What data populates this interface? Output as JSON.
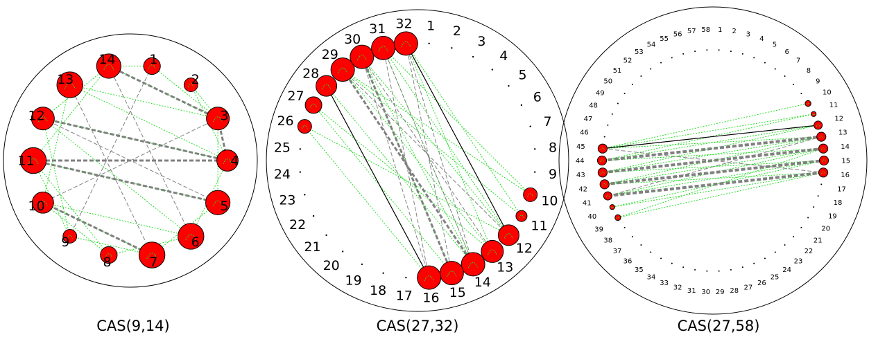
{
  "colors": {
    "node_fill": "#ff0000",
    "node_stroke": "#000000",
    "edge_green": "#22dd22",
    "edge_gray": "#808080",
    "edge_black": "#000000",
    "circle_stroke": "#000000"
  },
  "diagrams": [
    {
      "caption": "CAS(9,14)",
      "n": 14,
      "labels": [
        "1",
        "2",
        "3",
        "4",
        "5",
        "6",
        "7",
        "8",
        "9",
        "10",
        "11",
        "12",
        "13",
        "14"
      ],
      "active": [
        1,
        2,
        3,
        4,
        5,
        6,
        7,
        8,
        9,
        10,
        11,
        12,
        13,
        14
      ],
      "weights": {
        "1": 0.55,
        "2": 0.45,
        "3": 0.75,
        "4": 0.7,
        "5": 0.8,
        "6": 0.85,
        "7": 0.85,
        "8": 0.55,
        "9": 0.45,
        "10": 0.7,
        "11": 0.85,
        "12": 0.75,
        "13": 0.85,
        "14": 0.8
      },
      "edges_green": [
        [
          1,
          3
        ],
        [
          1,
          14
        ],
        [
          2,
          3
        ],
        [
          2,
          4
        ],
        [
          3,
          5
        ],
        [
          3,
          14
        ],
        [
          4,
          6
        ],
        [
          4,
          13
        ],
        [
          5,
          7
        ],
        [
          5,
          11
        ],
        [
          6,
          8
        ],
        [
          6,
          12
        ],
        [
          7,
          9
        ],
        [
          7,
          10
        ],
        [
          8,
          10
        ],
        [
          8,
          11
        ],
        [
          9,
          11
        ],
        [
          9,
          12
        ],
        [
          10,
          13
        ],
        [
          11,
          14
        ],
        [
          12,
          14
        ],
        [
          13,
          3
        ],
        [
          12,
          4
        ],
        [
          6,
          10
        ]
      ],
      "edges_gray_thin": [
        [
          3,
          10
        ],
        [
          13,
          7
        ],
        [
          14,
          6
        ],
        [
          12,
          5
        ],
        [
          1,
          9
        ]
      ],
      "edges_gray_thick": [
        [
          14,
          3
        ],
        [
          3,
          4
        ],
        [
          12,
          4
        ],
        [
          11,
          4
        ],
        [
          11,
          5
        ],
        [
          10,
          7
        ]
      ],
      "edges_black": []
    },
    {
      "caption": "CAS(27,32)",
      "n": 32,
      "labels": [
        "1",
        "2",
        "3",
        "4",
        "5",
        "6",
        "7",
        "8",
        "9",
        "10",
        "11",
        "12",
        "13",
        "14",
        "15",
        "16",
        "17",
        "18",
        "19",
        "20",
        "21",
        "22",
        "23",
        "24",
        "25",
        "26",
        "27",
        "28",
        "29",
        "30",
        "31",
        "32"
      ],
      "active": [
        10,
        11,
        12,
        13,
        14,
        15,
        16,
        26,
        27,
        28,
        29,
        30,
        31,
        32
      ],
      "weights": {
        "10": 0.5,
        "11": 0.4,
        "12": 0.75,
        "13": 0.8,
        "14": 0.85,
        "15": 0.85,
        "16": 0.85,
        "26": 0.5,
        "27": 0.6,
        "28": 0.75,
        "29": 0.85,
        "30": 0.85,
        "31": 0.85,
        "32": 0.85
      },
      "edges_green": [
        [
          26,
          12
        ],
        [
          27,
          13
        ],
        [
          28,
          14
        ],
        [
          29,
          10
        ],
        [
          29,
          11
        ],
        [
          30,
          12
        ],
        [
          31,
          10
        ],
        [
          31,
          12
        ],
        [
          32,
          11
        ],
        [
          32,
          13
        ],
        [
          30,
          14
        ],
        [
          28,
          16
        ],
        [
          27,
          15
        ],
        [
          26,
          16
        ],
        [
          29,
          13
        ],
        [
          30,
          15
        ],
        [
          31,
          14
        ]
      ],
      "edges_gray_thin": [
        [
          32,
          15
        ],
        [
          31,
          16
        ],
        [
          30,
          13
        ],
        [
          29,
          12
        ],
        [
          31,
          14
        ],
        [
          32,
          14
        ],
        [
          30,
          16
        ]
      ],
      "edges_gray_thick": [
        [
          29,
          14
        ],
        [
          30,
          15
        ]
      ],
      "edges_black": [
        [
          32,
          12
        ],
        [
          28,
          16
        ]
      ]
    },
    {
      "caption": "CAS(27,58)",
      "n": 58,
      "labels": [
        "1",
        "2",
        "3",
        "4",
        "5",
        "6",
        "7",
        "8",
        "9",
        "10",
        "11",
        "12",
        "13",
        "14",
        "15",
        "16",
        "17",
        "18",
        "19",
        "20",
        "21",
        "22",
        "23",
        "24",
        "25",
        "26",
        "27",
        "28",
        "29",
        "30",
        "31",
        "32",
        "33",
        "34",
        "35",
        "36",
        "37",
        "38",
        "39",
        "40",
        "41",
        "42",
        "43",
        "44",
        "45",
        "46",
        "47",
        "48",
        "49",
        "50",
        "51",
        "52",
        "53",
        "54",
        "55",
        "56",
        "57",
        "58"
      ],
      "active": [
        10,
        11,
        12,
        13,
        14,
        15,
        16,
        39,
        40,
        41,
        42,
        43,
        44,
        45
      ],
      "weights": {
        "10": 0.35,
        "11": 0.3,
        "12": 0.5,
        "13": 0.55,
        "14": 0.55,
        "15": 0.55,
        "16": 0.55,
        "39": 0.35,
        "40": 0.3,
        "41": 0.5,
        "42": 0.55,
        "43": 0.55,
        "44": 0.55,
        "45": 0.55
      },
      "edges_green": [
        [
          45,
          10
        ],
        [
          45,
          11
        ],
        [
          44,
          11
        ],
        [
          44,
          12
        ],
        [
          43,
          12
        ],
        [
          43,
          13
        ],
        [
          42,
          14
        ],
        [
          42,
          13
        ],
        [
          41,
          15
        ],
        [
          41,
          14
        ],
        [
          40,
          16
        ],
        [
          40,
          15
        ],
        [
          39,
          16
        ],
        [
          39,
          14
        ],
        [
          45,
          13
        ],
        [
          44,
          14
        ],
        [
          43,
          15
        ],
        [
          42,
          16
        ]
      ],
      "edges_gray_thin": [
        [
          44,
          13
        ],
        [
          43,
          14
        ],
        [
          42,
          15
        ],
        [
          45,
          16
        ],
        [
          41,
          13
        ]
      ],
      "edges_gray_thick": [
        [
          43,
          14
        ],
        [
          42,
          15
        ],
        [
          41,
          16
        ],
        [
          44,
          13
        ]
      ],
      "edges_black": [
        [
          45,
          12
        ]
      ]
    }
  ]
}
